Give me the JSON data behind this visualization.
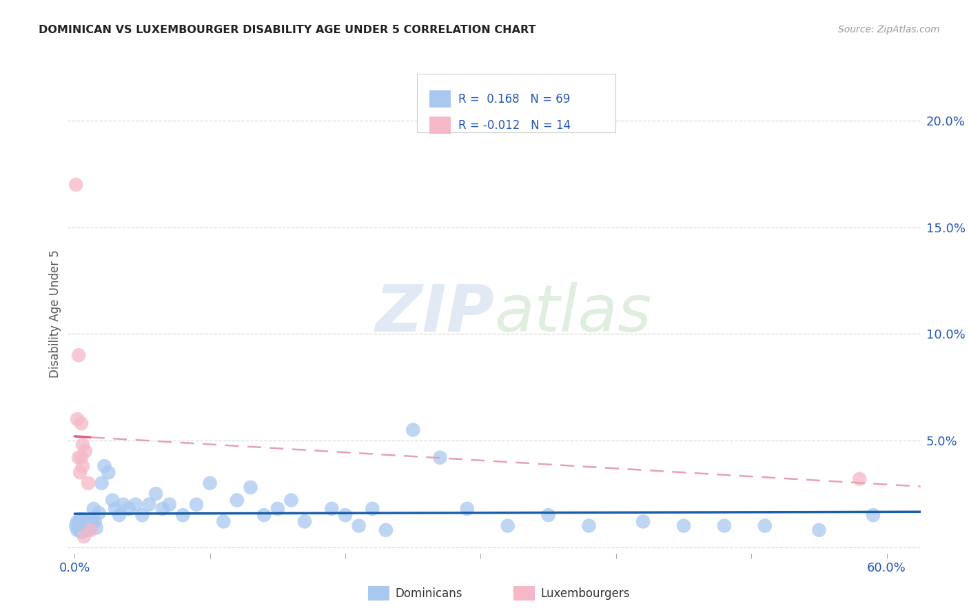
{
  "title": "DOMINICAN VS LUXEMBOURGER DISABILITY AGE UNDER 5 CORRELATION CHART",
  "source": "Source: ZipAtlas.com",
  "ylabel": "Disability Age Under 5",
  "xlim": [
    -0.005,
    0.625
  ],
  "ylim": [
    -0.003,
    0.222
  ],
  "xticks": [
    0.0,
    0.1,
    0.2,
    0.3,
    0.4,
    0.5,
    0.6
  ],
  "xticklabels": [
    "0.0%",
    "",
    "",
    "",
    "",
    "",
    "60.0%"
  ],
  "yticks": [
    0.0,
    0.05,
    0.1,
    0.15,
    0.2
  ],
  "yticklabels_right": [
    "",
    "5.0%",
    "10.0%",
    "15.0%",
    "20.0%"
  ],
  "watermark_zip": "ZIP",
  "watermark_atlas": "atlas",
  "legend_r_dominicans": " 0.168",
  "legend_n_dominicans": "69",
  "legend_r_luxembourgers": "-0.012",
  "legend_n_luxembourgers": "14",
  "dominicans_color": "#a8c8f0",
  "luxembourgers_color": "#f5b8c8",
  "trend_dominicans_color": "#1a5faa",
  "trend_luxembourgers_solid_color": "#e06080",
  "trend_luxembourgers_dash_color": "#e8a0b0",
  "background_color": "#ffffff",
  "grid_color": "#d8d8d8",
  "dominicans_x": [
    0.001,
    0.002,
    0.002,
    0.003,
    0.003,
    0.004,
    0.004,
    0.005,
    0.005,
    0.005,
    0.006,
    0.006,
    0.006,
    0.007,
    0.007,
    0.008,
    0.008,
    0.009,
    0.009,
    0.01,
    0.01,
    0.011,
    0.012,
    0.013,
    0.014,
    0.015,
    0.016,
    0.018,
    0.02,
    0.022,
    0.025,
    0.028,
    0.03,
    0.033,
    0.036,
    0.04,
    0.045,
    0.05,
    0.055,
    0.06,
    0.065,
    0.07,
    0.08,
    0.09,
    0.1,
    0.11,
    0.12,
    0.13,
    0.14,
    0.15,
    0.16,
    0.17,
    0.19,
    0.2,
    0.21,
    0.22,
    0.23,
    0.25,
    0.27,
    0.29,
    0.32,
    0.35,
    0.38,
    0.42,
    0.45,
    0.48,
    0.51,
    0.55,
    0.59
  ],
  "dominicans_y": [
    0.01,
    0.008,
    0.012,
    0.009,
    0.011,
    0.008,
    0.013,
    0.007,
    0.01,
    0.012,
    0.009,
    0.011,
    0.013,
    0.008,
    0.01,
    0.009,
    0.011,
    0.01,
    0.012,
    0.008,
    0.011,
    0.009,
    0.01,
    0.013,
    0.018,
    0.012,
    0.009,
    0.016,
    0.03,
    0.038,
    0.035,
    0.022,
    0.018,
    0.015,
    0.02,
    0.018,
    0.02,
    0.015,
    0.02,
    0.025,
    0.018,
    0.02,
    0.015,
    0.02,
    0.03,
    0.012,
    0.022,
    0.028,
    0.015,
    0.018,
    0.022,
    0.012,
    0.018,
    0.015,
    0.01,
    0.018,
    0.008,
    0.055,
    0.042,
    0.018,
    0.01,
    0.015,
    0.01,
    0.012,
    0.01,
    0.01,
    0.01,
    0.008,
    0.015
  ],
  "luxembourgers_x": [
    0.001,
    0.002,
    0.003,
    0.003,
    0.004,
    0.005,
    0.005,
    0.006,
    0.006,
    0.007,
    0.008,
    0.01,
    0.012,
    0.58
  ],
  "luxembourgers_y": [
    0.17,
    0.06,
    0.09,
    0.042,
    0.035,
    0.042,
    0.058,
    0.038,
    0.048,
    0.005,
    0.045,
    0.03,
    0.008,
    0.032
  ]
}
